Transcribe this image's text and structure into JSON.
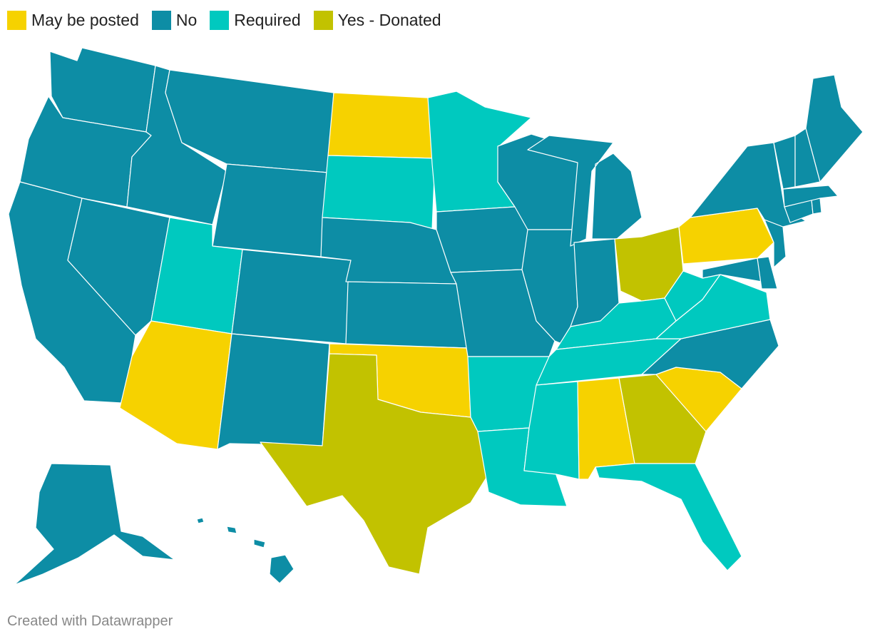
{
  "legend": [
    {
      "label": "May be posted",
      "color": "#f6d200"
    },
    {
      "label": "No",
      "color": "#0d8da5"
    },
    {
      "label": "Required",
      "color": "#00c9bf"
    },
    {
      "label": "Yes - Donated",
      "color": "#c2c200"
    }
  ],
  "colors": {
    "may_be_posted": "#f6d200",
    "no": "#0d8da5",
    "required": "#00c9bf",
    "yes_donated": "#c2c200"
  },
  "states": [
    {
      "state": "Washington",
      "category": "no"
    },
    {
      "state": "Oregon",
      "category": "no"
    },
    {
      "state": "California",
      "category": "no"
    },
    {
      "state": "Nevada",
      "category": "no"
    },
    {
      "state": "Idaho",
      "category": "no"
    },
    {
      "state": "Montana",
      "category": "no"
    },
    {
      "state": "Wyoming",
      "category": "no"
    },
    {
      "state": "Utah",
      "category": "required"
    },
    {
      "state": "Arizona",
      "category": "may_be_posted"
    },
    {
      "state": "Colorado",
      "category": "no"
    },
    {
      "state": "New Mexico",
      "category": "no"
    },
    {
      "state": "North Dakota",
      "category": "may_be_posted"
    },
    {
      "state": "South Dakota",
      "category": "required"
    },
    {
      "state": "Nebraska",
      "category": "no"
    },
    {
      "state": "Kansas",
      "category": "no"
    },
    {
      "state": "Oklahoma",
      "category": "may_be_posted"
    },
    {
      "state": "Texas",
      "category": "yes_donated"
    },
    {
      "state": "Minnesota",
      "category": "required"
    },
    {
      "state": "Iowa",
      "category": "no"
    },
    {
      "state": "Missouri",
      "category": "no"
    },
    {
      "state": "Arkansas",
      "category": "required"
    },
    {
      "state": "Louisiana",
      "category": "required"
    },
    {
      "state": "Wisconsin",
      "category": "no"
    },
    {
      "state": "Illinois",
      "category": "no"
    },
    {
      "state": "Michigan",
      "category": "no"
    },
    {
      "state": "Indiana",
      "category": "no"
    },
    {
      "state": "Ohio",
      "category": "yes_donated"
    },
    {
      "state": "Kentucky",
      "category": "required"
    },
    {
      "state": "Tennessee",
      "category": "required"
    },
    {
      "state": "Mississippi",
      "category": "required"
    },
    {
      "state": "Alabama",
      "category": "may_be_posted"
    },
    {
      "state": "Georgia",
      "category": "yes_donated"
    },
    {
      "state": "Florida",
      "category": "required"
    },
    {
      "state": "South Carolina",
      "category": "may_be_posted"
    },
    {
      "state": "North Carolina",
      "category": "no"
    },
    {
      "state": "Virginia",
      "category": "required"
    },
    {
      "state": "West Virginia",
      "category": "required"
    },
    {
      "state": "Maryland",
      "category": "no"
    },
    {
      "state": "Delaware",
      "category": "no"
    },
    {
      "state": "Pennsylvania",
      "category": "may_be_posted"
    },
    {
      "state": "New Jersey",
      "category": "no"
    },
    {
      "state": "New York",
      "category": "no"
    },
    {
      "state": "Connecticut",
      "category": "no"
    },
    {
      "state": "Rhode Island",
      "category": "no"
    },
    {
      "state": "Massachusetts",
      "category": "no"
    },
    {
      "state": "Vermont",
      "category": "no"
    },
    {
      "state": "New Hampshire",
      "category": "no"
    },
    {
      "state": "Maine",
      "category": "no"
    },
    {
      "state": "Alaska",
      "category": "no"
    },
    {
      "state": "Hawaii",
      "category": "no"
    }
  ],
  "credit": "Created with Datawrapper"
}
